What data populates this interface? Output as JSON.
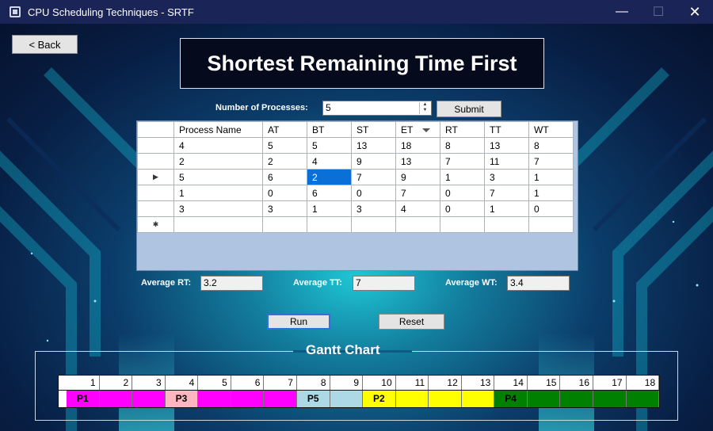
{
  "window": {
    "title": "CPU Scheduling Techniques - SRTF",
    "minimize_glyph": "—",
    "maximize_glyph": "☐",
    "close_glyph": "✕"
  },
  "back_button": {
    "label": "< Back"
  },
  "heading": "Shortest Remaining Time First",
  "processes_input": {
    "label": "Number of Processes:",
    "value": "5"
  },
  "submit_button": {
    "label": "Submit"
  },
  "table": {
    "columns": [
      "Process Name",
      "AT",
      "BT",
      "ST",
      "ET",
      "RT",
      "TT",
      "WT"
    ],
    "rows": [
      [
        "4",
        "5",
        "5",
        "13",
        "18",
        "8",
        "13",
        "8"
      ],
      [
        "2",
        "2",
        "4",
        "9",
        "13",
        "7",
        "11",
        "7"
      ],
      [
        "5",
        "6",
        "2",
        "7",
        "9",
        "1",
        "3",
        "1"
      ],
      [
        "1",
        "0",
        "6",
        "0",
        "7",
        "0",
        "7",
        "1"
      ],
      [
        "3",
        "3",
        "1",
        "3",
        "4",
        "0",
        "1",
        "0"
      ]
    ],
    "current_row_marker": "▶",
    "new_row_marker": "✱",
    "selected_cell": {
      "row": 2,
      "col": 2
    }
  },
  "averages": {
    "rt_label": "Average RT:",
    "rt_value": "3.2",
    "tt_label": "Average TT:",
    "tt_value": "7",
    "wt_label": "Average WT:",
    "wt_value": "3.4"
  },
  "run_button": {
    "label": "Run"
  },
  "reset_button": {
    "label": "Reset"
  },
  "gantt": {
    "title": "Gantt Chart",
    "ticks": [
      "1",
      "2",
      "3",
      "4",
      "5",
      "6",
      "7",
      "8",
      "9",
      "10",
      "11",
      "12",
      "13",
      "14",
      "15",
      "16",
      "17",
      "18"
    ],
    "cells": [
      {
        "label": "P1",
        "color": "#ff00ff"
      },
      {
        "label": "",
        "color": "#ff00ff"
      },
      {
        "label": "",
        "color": "#ff00ff"
      },
      {
        "label": "P3",
        "color": "#ffb6c1"
      },
      {
        "label": "",
        "color": "#ff00ff"
      },
      {
        "label": "",
        "color": "#ff00ff"
      },
      {
        "label": "",
        "color": "#ff00ff"
      },
      {
        "label": "P5",
        "color": "#add8e6"
      },
      {
        "label": "",
        "color": "#add8e6"
      },
      {
        "label": "P2",
        "color": "#ffff00"
      },
      {
        "label": "",
        "color": "#ffff00"
      },
      {
        "label": "",
        "color": "#ffff00"
      },
      {
        "label": "",
        "color": "#ffff00"
      },
      {
        "label": "P4",
        "color": "#008000"
      },
      {
        "label": "",
        "color": "#008000"
      },
      {
        "label": "",
        "color": "#008000"
      },
      {
        "label": "",
        "color": "#008000"
      },
      {
        "label": "",
        "color": "#008000"
      }
    ]
  }
}
